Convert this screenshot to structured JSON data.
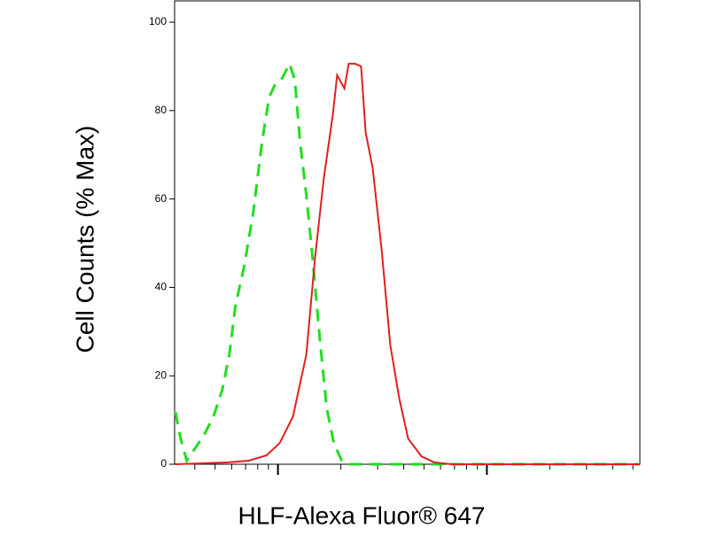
{
  "chart_data": {
    "type": "line",
    "x_label": "HLF-Alexa Fluor® 647",
    "y_label": "Cell Counts (% Max)",
    "xscale": "log",
    "xlim": [
      32,
      5400
    ],
    "xticks": [
      40,
      50,
      60,
      70,
      80,
      90,
      100,
      200,
      300,
      400,
      500,
      600,
      700,
      800,
      900,
      1000,
      2000,
      3000,
      4000,
      5000
    ],
    "ylim": [
      0,
      100
    ],
    "yticks": [
      0,
      20,
      40,
      60,
      80,
      100
    ],
    "series": [
      {
        "color": "#22dd22",
        "dash": true,
        "x": [
          32.3,
          34.2,
          36.6,
          40.4,
          44.5,
          49.1,
          54.1,
          58.5,
          62.6,
          69.0,
          76.1,
          83.9,
          90.7,
          97.1,
          105,
          113.5,
          120.4,
          127.6,
          136.7,
          146.3,
          158.2,
          171,
          185,
          202,
          222,
          284,
          5400
        ],
        "values": [
          11.8,
          5.8,
          0.8,
          3.8,
          6.8,
          10.8,
          16.8,
          24.8,
          35.9,
          44.9,
          56.9,
          72.9,
          83,
          86,
          87.4,
          90.6,
          87,
          72.9,
          60.9,
          46.9,
          28.9,
          12.8,
          4.8,
          0.8,
          0,
          0,
          0
        ]
      },
      {
        "color": "#e02020",
        "dash": false,
        "x": [
          32.3,
          56.8,
          72.5,
          88.1,
          102,
          118,
          136.7,
          150.6,
          166,
          183,
          192,
          208,
          218,
          234,
          250,
          263,
          284,
          313,
          345,
          381,
          420,
          486,
          562,
          684,
          5400
        ],
        "values": [
          0,
          0.4,
          0.8,
          2,
          4.8,
          10.8,
          24.8,
          46.9,
          64.9,
          79,
          88,
          85,
          90.6,
          90.6,
          90,
          75,
          67,
          48.9,
          26.9,
          14.8,
          5.8,
          1.8,
          0.4,
          0,
          0
        ]
      }
    ]
  }
}
